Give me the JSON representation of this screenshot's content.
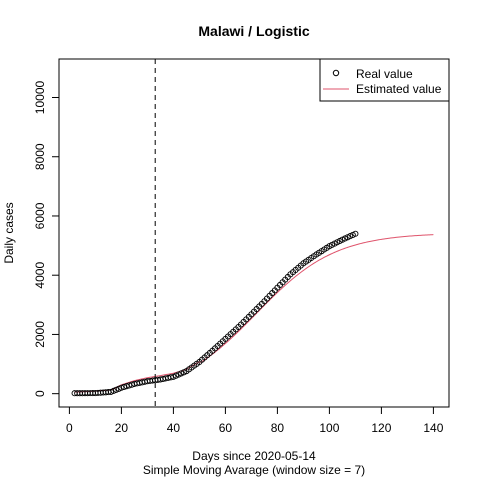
{
  "chart_data": {
    "type": "scatter",
    "title": "Malawi / Logistic",
    "xlabel": "Days since 2020-05-14",
    "xlabel2": "Simple Moving Avarage (window size = 7)",
    "ylabel": "Daily cases",
    "xlim": [
      -4,
      146
    ],
    "ylim": [
      -450,
      11300
    ],
    "xticks": [
      0,
      20,
      40,
      60,
      80,
      100,
      120,
      140
    ],
    "xtick_labels": [
      "0",
      "20",
      "40",
      "60",
      "80",
      "100",
      "120",
      "140"
    ],
    "yticks": [
      0,
      2000,
      4000,
      6000,
      8000,
      10000
    ],
    "ytick_labels": [
      "0",
      "2000",
      "4000",
      "6000",
      "8000",
      "10000"
    ],
    "vline": 33,
    "grid": false,
    "legend_position": "top-right",
    "legend": {
      "real_label": "Real value",
      "estimated_label": "Estimated value"
    },
    "colors": {
      "real": "#000000",
      "estimated": "#DF536B",
      "vline": "#000000"
    },
    "series": [
      {
        "name": "Real value",
        "style": "points",
        "x_start": 2,
        "x_end": 110,
        "anchors_x": [
          2,
          10,
          16,
          20,
          25,
          30,
          35,
          40,
          45,
          50,
          55,
          60,
          65,
          70,
          75,
          80,
          85,
          90,
          95,
          100,
          105,
          110
        ],
        "anchors_y": [
          15,
          20,
          60,
          200,
          330,
          420,
          480,
          570,
          760,
          1070,
          1450,
          1850,
          2250,
          2680,
          3120,
          3580,
          4030,
          4400,
          4700,
          4980,
          5200,
          5400
        ]
      },
      {
        "name": "Estimated value",
        "style": "line",
        "logistic": {
          "K": 5430,
          "r": 0.066,
          "x0": 72,
          "offset": 0,
          "x_from": 2,
          "x_to": 140
        },
        "early_bump": {
          "x": [
            2,
            10,
            16,
            20,
            25,
            30,
            35,
            40,
            45,
            50
          ],
          "y": [
            10,
            40,
            120,
            300,
            440,
            540,
            610,
            690,
            820,
            1080
          ]
        }
      }
    ]
  }
}
